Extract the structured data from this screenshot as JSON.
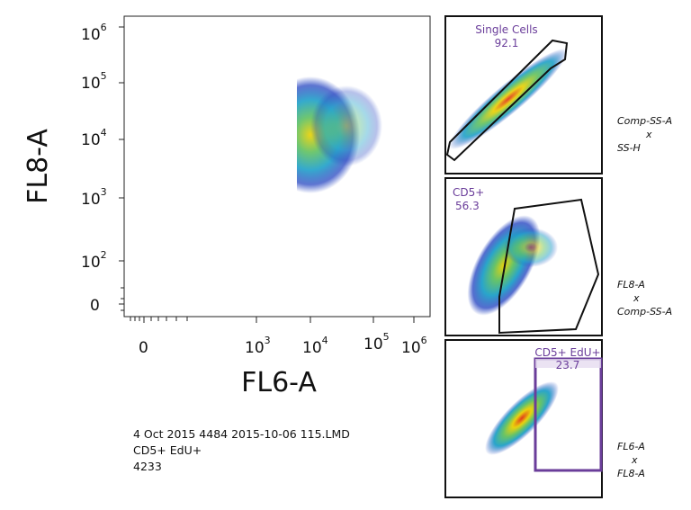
{
  "main_plot": {
    "y_label": "FL8-A",
    "x_label": "FL6-A",
    "y_ticks": [
      {
        "base": "10",
        "exp": "6"
      },
      {
        "base": "10",
        "exp": "5"
      },
      {
        "base": "10",
        "exp": "4"
      },
      {
        "base": "10",
        "exp": "3"
      },
      {
        "base": "10",
        "exp": "2"
      },
      {
        "base": "0"
      }
    ],
    "x_ticks": [
      {
        "base": "0"
      },
      {
        "base": "10",
        "exp": "3"
      },
      {
        "base": "10",
        "exp": "4"
      },
      {
        "base": "10",
        "exp": "5"
      },
      {
        "base": "10",
        "exp": "6"
      }
    ]
  },
  "info": {
    "lines": [
      "4 Oct 2015 4484 2015-10-06 115.LMD",
      "CD5+ EdU+",
      4233
    ]
  },
  "panels": [
    {
      "gate": "Single Cells",
      "value": 92.1,
      "axes": [
        "Comp-SS-A",
        "x",
        "SS-H"
      ]
    },
    {
      "gate": "CD5+",
      "value": 56.3,
      "axes": [
        "FL8-A",
        "x",
        "Comp-SS-A"
      ]
    },
    {
      "gate": "CD5+ EdU+",
      "value": 23.7,
      "axes": [
        "FL6-A",
        "x",
        "FL8-A"
      ]
    }
  ]
}
